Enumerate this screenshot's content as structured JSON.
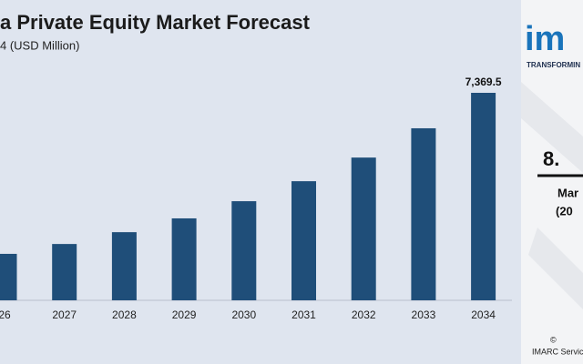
{
  "chart_data": {
    "type": "bar",
    "title": "a Private Equity Market Forecast",
    "subtitle": "4 (USD Million)",
    "categories": [
      "26",
      "2027",
      "2028",
      "2029",
      "2030",
      "2031",
      "2032",
      "2033",
      "2034"
    ],
    "values": [
      1650,
      2000,
      2420,
      2910,
      3520,
      4230,
      5070,
      6110,
      7369.5
    ],
    "value_labels": [
      null,
      null,
      null,
      null,
      null,
      null,
      null,
      null,
      "7,369.5"
    ],
    "color": "#1f4e79"
  },
  "sidebar": {
    "logo": "im",
    "tagline": "TRANSFORMIN",
    "cagr": "8.",
    "cagr_label": "Mar",
    "cagr_period": "(20",
    "copyright": "©",
    "source": "IMARC Servic"
  }
}
